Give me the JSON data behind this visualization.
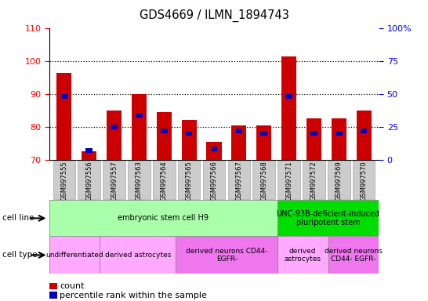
{
  "title": "GDS4669 / ILMN_1894743",
  "samples": [
    "GSM997555",
    "GSM997556",
    "GSM997557",
    "GSM997563",
    "GSM997564",
    "GSM997565",
    "GSM997566",
    "GSM997567",
    "GSM997568",
    "GSM997571",
    "GSM997572",
    "GSM997569",
    "GSM997570"
  ],
  "count_values": [
    96.5,
    72.5,
    85.0,
    90.0,
    84.5,
    82.0,
    75.5,
    80.5,
    80.5,
    101.5,
    82.5,
    82.5,
    85.0
  ],
  "percentile_values": [
    48,
    7,
    25,
    34,
    22,
    20,
    8,
    22,
    20,
    48,
    20,
    20,
    22
  ],
  "ylim_left": [
    70,
    110
  ],
  "ylim_right": [
    0,
    100
  ],
  "yticks_left": [
    70,
    80,
    90,
    100,
    110
  ],
  "yticks_right": [
    0,
    25,
    50,
    75,
    100
  ],
  "ytick_labels_right": [
    "0",
    "25",
    "50",
    "75",
    "100%"
  ],
  "bar_color_red": "#cc0000",
  "bar_color_blue": "#0000bb",
  "cell_line_groups": [
    {
      "label": "embryonic stem cell H9",
      "start": 0,
      "end": 9,
      "color": "#aaffaa"
    },
    {
      "label": "UNC-93B-deficient-induced\npluripotent stem",
      "start": 9,
      "end": 13,
      "color": "#00dd00"
    }
  ],
  "cell_type_groups": [
    {
      "label": "undifferentiated",
      "start": 0,
      "end": 2,
      "color": "#ffaaff"
    },
    {
      "label": "derived astrocytes",
      "start": 2,
      "end": 5,
      "color": "#ffaaff"
    },
    {
      "label": "derived neurons CD44-\nEGFR-",
      "start": 5,
      "end": 9,
      "color": "#ee77ee"
    },
    {
      "label": "derived\nastrocytes",
      "start": 9,
      "end": 11,
      "color": "#ffaaff"
    },
    {
      "label": "derived neurons\nCD44- EGFR-",
      "start": 11,
      "end": 13,
      "color": "#ee77ee"
    }
  ],
  "legend_count_label": "count",
  "legend_percentile_label": "percentile rank within the sample"
}
